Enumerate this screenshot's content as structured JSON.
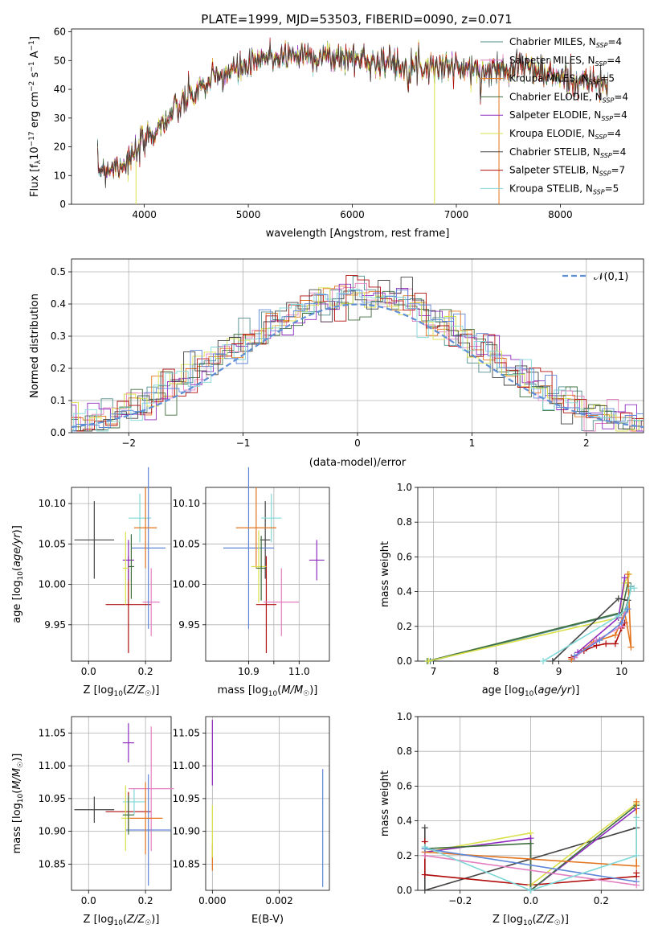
{
  "figure": {
    "title": "PLATE=1999, MJD=53503, FIBERID=0090, z=0.071"
  },
  "colors": {
    "Chabrier MILES": "#4e8d8b",
    "Salpeter MILES": "#e37fc1",
    "Kroupa MILES": "#e3741d",
    "Chabrier ELODIE": "#3f6e3f",
    "Salpeter ELODIE": "#8e2bbf",
    "Kroupa ELODIE": "#d9e04a",
    "Chabrier STELIB": "#444444",
    "Salpeter STELIB": "#b10d0d",
    "Kroupa STELIB": "#7fd7d7",
    "extra_blue": "#5f86d8",
    "normal_curve": "#5f8fd4"
  },
  "chart_data": [
    {
      "id": "spectrum",
      "type": "line",
      "title": "PLATE=1999, MJD=53503, FIBERID=0090, z=0.071",
      "xlabel": "wavelength [Angstrom, rest frame]",
      "ylabel": "Flux [f_λ 10^-17 erg cm^-2 s^-1 A^-1]",
      "xlim": [
        3300,
        8800
      ],
      "ylim": [
        0,
        61
      ],
      "xticks": [
        4000,
        5000,
        6000,
        7000,
        8000
      ],
      "yticks": [
        0,
        10,
        20,
        30,
        40,
        50,
        60
      ],
      "grid": false,
      "legend_position": "top-right",
      "continuum": [
        [
          3550,
          12
        ],
        [
          3700,
          13
        ],
        [
          3850,
          15
        ],
        [
          3950,
          19
        ],
        [
          4050,
          24
        ],
        [
          4200,
          29
        ],
        [
          4400,
          36
        ],
        [
          4600,
          42
        ],
        [
          4800,
          46
        ],
        [
          5000,
          48
        ],
        [
          5200,
          51
        ],
        [
          5400,
          52
        ],
        [
          5600,
          52
        ],
        [
          5800,
          51
        ],
        [
          6000,
          51
        ],
        [
          6200,
          50
        ],
        [
          6400,
          49
        ],
        [
          6600,
          48
        ],
        [
          6800,
          48
        ],
        [
          7000,
          48
        ],
        [
          7200,
          46
        ],
        [
          7400,
          47
        ],
        [
          7600,
          49
        ],
        [
          7800,
          46
        ],
        [
          8000,
          44
        ],
        [
          8200,
          43
        ],
        [
          8400,
          42
        ],
        [
          8460,
          40
        ]
      ],
      "series": [
        {
          "name": "Chabrier MILES, N_SSP=4",
          "label": "Chabrier MILES",
          "sub": "SSP",
          "n": "4"
        },
        {
          "name": "Salpeter MILES, N_SSP=4",
          "label": "Salpeter MILES",
          "sub": "SSP",
          "n": "4"
        },
        {
          "name": "Kroupa MILES, N_SSP=5",
          "label": "Kroupa MILES",
          "sub": "SSP",
          "n": "5"
        },
        {
          "name": "Chabrier ELODIE, N_SSP=4",
          "label": "Chabrier ELODIE",
          "sub": "SSP",
          "n": "4"
        },
        {
          "name": "Salpeter ELODIE, N_SSP=4",
          "label": "Salpeter ELODIE",
          "sub": "SSP",
          "n": "4"
        },
        {
          "name": "Kroupa ELODIE, N_SSP=4",
          "label": "Kroupa ELODIE",
          "sub": "SSP",
          "n": "4"
        },
        {
          "name": "Chabrier STELIB, N_SSP=4",
          "label": "Chabrier STELIB",
          "sub": "SSP",
          "n": "4"
        },
        {
          "name": "Salpeter STELIB, N_SSP=7",
          "label": "Salpeter STELIB",
          "sub": "SSP",
          "n": "7"
        },
        {
          "name": "Kroupa STELIB, N_SSP=5",
          "label": "Kroupa STELIB",
          "sub": "SSP",
          "n": "5"
        }
      ],
      "dropouts": [
        {
          "series": "Kroupa ELODIE",
          "x": 3920,
          "y_from": 15,
          "y_to": 0
        },
        {
          "series": "Kroupa ELODIE",
          "x": 6790,
          "y_from": 48,
          "y_to": 0
        },
        {
          "series": "Kroupa MILES",
          "x": 7410,
          "y_from": 47,
          "y_to": 0
        }
      ]
    },
    {
      "id": "residuals",
      "type": "line",
      "xlabel": "(data-model)/error",
      "ylabel": "Normed distribution",
      "xlim": [
        -2.5,
        2.5
      ],
      "ylim": [
        0,
        0.54
      ],
      "xticks": [
        -2,
        -1,
        0,
        1,
        2
      ],
      "yticks": [
        0.0,
        0.1,
        0.2,
        0.3,
        0.4,
        0.5
      ],
      "grid": true,
      "legend_position": "top-right",
      "normal_label": "𝒩(0,1)",
      "bin_width": 0.1
    },
    {
      "id": "age_vs_Z",
      "type": "scatter",
      "xlabel": "Z [log10(Z/Z☉)]",
      "ylabel": "age [log10(age/yr)]",
      "xlim": [
        -0.06,
        0.29
      ],
      "ylim": [
        9.905,
        10.12
      ],
      "xticks": [
        0.0,
        0.2
      ],
      "yticks": [
        9.95,
        10.0,
        10.05,
        10.1
      ],
      "grid": true,
      "points": [
        {
          "series": "Chabrier STELIB",
          "x": 0.02,
          "xerr": 0.07,
          "y": 10.055,
          "yerr": 0.048
        },
        {
          "series": "Salpeter STELIB",
          "x": 0.14,
          "xerr": 0.08,
          "y": 9.975,
          "yerr": 0.06
        },
        {
          "series": "Kroupa STELIB",
          "x": 0.18,
          "xerr": 0.04,
          "y": 10.082,
          "yerr": 0.03
        },
        {
          "series": "Salpeter MILES",
          "x": 0.22,
          "xerr": 0.03,
          "y": 9.978,
          "yerr": 0.042
        },
        {
          "series": "extra_blue",
          "x": 0.21,
          "xerr": 0.06,
          "y": 10.045,
          "yerr": 0.1
        },
        {
          "series": "Kroupa MILES",
          "x": 0.2,
          "xerr": 0.04,
          "y": 10.07,
          "yerr": 0.05
        },
        {
          "series": "Salpeter ELODIE",
          "x": 0.14,
          "xerr": 0.02,
          "y": 10.03,
          "yerr": 0.025
        },
        {
          "series": "Kroupa ELODIE",
          "x": 0.13,
          "xerr": 0.01,
          "y": 10.02,
          "yerr": 0.045
        },
        {
          "series": "Chabrier ELODIE",
          "x": 0.15,
          "xerr": 0.01,
          "y": 10.022,
          "yerr": 0.04
        }
      ]
    },
    {
      "id": "age_vs_mass",
      "type": "scatter",
      "xlabel": "mass [log10(M/M☉)]",
      "ylabel": "",
      "xlim": [
        10.815,
        11.06
      ],
      "ylim": [
        9.905,
        10.12
      ],
      "xticks": [
        10.9,
        10.95,
        11.0
      ],
      "xticklabels": [
        "10.9",
        "",
        "11.0"
      ],
      "yticks": [
        9.95,
        10.0,
        10.05,
        10.1
      ],
      "grid": true,
      "points": [
        {
          "series": "Chabrier STELIB",
          "x": 10.933,
          "xerr": 0.01,
          "y": 10.055,
          "yerr": 0.048
        },
        {
          "series": "Salpeter STELIB",
          "x": 10.935,
          "xerr": 0.02,
          "y": 9.975,
          "yerr": 0.06
        },
        {
          "series": "Kroupa STELIB",
          "x": 10.945,
          "xerr": 0.02,
          "y": 10.082,
          "yerr": 0.03
        },
        {
          "series": "Salpeter MILES",
          "x": 10.965,
          "xerr": 0.035,
          "y": 9.978,
          "yerr": 0.042
        },
        {
          "series": "extra_blue",
          "x": 10.9,
          "xerr": 0.05,
          "y": 10.045,
          "yerr": 0.1
        },
        {
          "series": "Kroupa MILES",
          "x": 10.915,
          "xerr": 0.04,
          "y": 10.07,
          "yerr": 0.05
        },
        {
          "series": "Salpeter ELODIE",
          "x": 11.035,
          "xerr": 0.015,
          "y": 10.03,
          "yerr": 0.025
        },
        {
          "series": "Kroupa ELODIE",
          "x": 10.92,
          "xerr": 0.015,
          "y": 10.022,
          "yerr": 0.045
        },
        {
          "series": "Chabrier ELODIE",
          "x": 10.925,
          "xerr": 0.01,
          "y": 10.02,
          "yerr": 0.04
        }
      ]
    },
    {
      "id": "weights_vs_age",
      "type": "line",
      "xlabel": "age [log10(age/yr)]",
      "ylabel": "mass weight",
      "xlim": [
        6.75,
        10.35
      ],
      "ylim": [
        0,
        1.0
      ],
      "xticks": [
        7,
        8,
        9,
        10
      ],
      "yticks": [
        0.0,
        0.2,
        0.4,
        0.6,
        0.8,
        1.0
      ],
      "grid": true,
      "series": [
        {
          "series": "Chabrier MILES",
          "points": [
            [
              6.95,
              0.0
            ],
            [
              10.05,
              0.28
            ],
            [
              10.1,
              0.35
            ],
            [
              10.15,
              0.43
            ]
          ]
        },
        {
          "series": "Chabrier ELODIE",
          "points": [
            [
              6.9,
              0.0
            ],
            [
              10.0,
              0.28
            ],
            [
              10.1,
              0.45
            ]
          ]
        },
        {
          "series": "Kroupa ELODIE",
          "points": [
            [
              6.92,
              0.0
            ],
            [
              9.95,
              0.25
            ],
            [
              10.05,
              0.45
            ],
            [
              10.12,
              0.5
            ]
          ]
        },
        {
          "series": "Salpeter ELODIE",
          "points": [
            [
              9.3,
              0.05
            ],
            [
              9.95,
              0.25
            ],
            [
              10.05,
              0.48
            ]
          ]
        },
        {
          "series": "Chabrier STELIB",
          "points": [
            [
              8.9,
              0.0
            ],
            [
              9.95,
              0.36
            ],
            [
              10.1,
              0.35
            ]
          ]
        },
        {
          "series": "Salpeter STELIB",
          "points": [
            [
              9.2,
              0.02
            ],
            [
              9.4,
              0.06
            ],
            [
              9.6,
              0.09
            ],
            [
              9.75,
              0.1
            ],
            [
              9.9,
              0.1
            ],
            [
              10.0,
              0.19
            ],
            [
              10.05,
              0.22
            ]
          ]
        },
        {
          "series": "Kroupa MILES",
          "points": [
            [
              9.2,
              0.01
            ],
            [
              9.55,
              0.11
            ],
            [
              9.9,
              0.15
            ],
            [
              10.05,
              0.28
            ],
            [
              10.15,
              0.08
            ],
            [
              10.1,
              0.5
            ]
          ]
        },
        {
          "series": "Salpeter MILES",
          "points": [
            [
              9.25,
              0.02
            ],
            [
              9.6,
              0.12
            ],
            [
              10.0,
              0.2
            ],
            [
              10.05,
              0.28
            ]
          ]
        },
        {
          "series": "Kroupa STELIB",
          "points": [
            [
              8.75,
              0.0
            ],
            [
              9.95,
              0.26
            ],
            [
              10.08,
              0.3
            ],
            [
              10.15,
              0.42
            ],
            [
              10.2,
              0.42
            ]
          ]
        },
        {
          "series": "extra_blue",
          "points": [
            [
              9.25,
              0.03
            ],
            [
              9.65,
              0.12
            ],
            [
              10.0,
              0.22
            ],
            [
              10.1,
              0.3
            ]
          ]
        }
      ]
    },
    {
      "id": "mass_vs_Z",
      "type": "scatter",
      "xlabel": "Z [log10(Z/Z☉)]",
      "ylabel": "mass [log10(M/M☉)]",
      "xlim": [
        -0.06,
        0.29
      ],
      "ylim": [
        10.81,
        11.075
      ],
      "xticks": [
        0.0,
        0.2
      ],
      "yticks": [
        10.85,
        10.9,
        10.95,
        11.0,
        11.05
      ],
      "grid": true,
      "points": [
        {
          "series": "Chabrier STELIB",
          "x": 0.02,
          "xerr": 0.07,
          "y": 10.933,
          "yerr": 0.02
        },
        {
          "series": "Salpeter STELIB",
          "x": 0.14,
          "xerr": 0.08,
          "y": 10.93,
          "yerr": 0.03
        },
        {
          "series": "Kroupa STELIB",
          "x": 0.16,
          "xerr": 0.04,
          "y": 10.945,
          "yerr": 0.02
        },
        {
          "series": "Salpeter MILES",
          "x": 0.22,
          "xerr": 0.08,
          "y": 10.965,
          "yerr": 0.095
        },
        {
          "series": "extra_blue",
          "x": 0.21,
          "xerr": 0.08,
          "y": 10.902,
          "yerr": 0.085
        },
        {
          "series": "Kroupa MILES",
          "x": 0.2,
          "xerr": 0.06,
          "y": 10.92,
          "yerr": 0.055
        },
        {
          "series": "Salpeter ELODIE",
          "x": 0.14,
          "xerr": 0.02,
          "y": 11.035,
          "yerr": 0.03
        },
        {
          "series": "Kroupa ELODIE",
          "x": 0.13,
          "xerr": 0.015,
          "y": 10.92,
          "yerr": 0.05
        },
        {
          "series": "Chabrier ELODIE",
          "x": 0.14,
          "xerr": 0.02,
          "y": 10.925,
          "yerr": 0.03
        }
      ]
    },
    {
      "id": "mass_vs_EBV",
      "type": "scatter",
      "xlabel": "E(B-V)",
      "ylabel": "",
      "xlim": [
        -0.0002,
        0.0035
      ],
      "ylim": [
        10.81,
        11.075
      ],
      "xticks": [
        0.0,
        0.002
      ],
      "xticklabels": [
        "0.000",
        "0.002"
      ],
      "yticks": [
        10.85,
        10.9,
        10.95,
        11.0,
        11.05
      ],
      "grid": true,
      "points": [
        {
          "series": "Salpeter ELODIE",
          "x": 0.0,
          "y": 11.02,
          "yerr": 0.05
        },
        {
          "series": "Kroupa MILES",
          "x": 0.0,
          "y": 10.86,
          "yerr": 0.02
        },
        {
          "series": "Kroupa ELODIE",
          "x": 0.0,
          "y": 10.9,
          "yerr": 0.04
        },
        {
          "series": "extra_blue",
          "x": 0.0033,
          "y": 10.905,
          "yerr": 0.09
        }
      ]
    },
    {
      "id": "weights_vs_Z",
      "type": "line",
      "xlabel": "Z [log10(Z/Z☉)]",
      "ylabel": "mass weight",
      "xlim": [
        -0.32,
        0.32
      ],
      "ylim": [
        0,
        1.0
      ],
      "xticks": [
        -0.2,
        0.0,
        0.2
      ],
      "yticks": [
        0.0,
        0.2,
        0.4,
        0.6,
        0.8,
        1.0
      ],
      "grid": true,
      "series": [
        {
          "series": "Chabrier STELIB",
          "points": [
            [
              -0.3,
              0.36
            ],
            [
              -0.3,
              0.0
            ],
            [
              0.3,
              0.36
            ]
          ]
        },
        {
          "series": "Salpeter STELIB",
          "points": [
            [
              -0.3,
              0.28
            ],
            [
              -0.3,
              0.09
            ],
            [
              0.0,
              0.03
            ],
            [
              0.3,
              0.08
            ],
            [
              0.3,
              0.1
            ]
          ]
        },
        {
          "series": "Kroupa ELODIE",
          "points": [
            [
              -0.3,
              0.22
            ],
            [
              0.0,
              0.33
            ],
            [
              0.0,
              0.03
            ],
            [
              0.3,
              0.5
            ]
          ]
        },
        {
          "series": "Salpeter ELODIE",
          "points": [
            [
              -0.3,
              0.22
            ],
            [
              0.0,
              0.3
            ],
            [
              0.0,
              0.0
            ],
            [
              0.3,
              0.47
            ]
          ]
        },
        {
          "series": "Chabrier ELODIE",
          "points": [
            [
              -0.3,
              0.24
            ],
            [
              0.0,
              0.27
            ],
            [
              0.0,
              0.0
            ],
            [
              0.3,
              0.49
            ]
          ]
        },
        {
          "series": "Kroupa MILES",
          "points": [
            [
              -0.3,
              0.22
            ],
            [
              0.3,
              0.14
            ],
            [
              0.3,
              0.51
            ]
          ]
        },
        {
          "series": "extra_blue",
          "points": [
            [
              -0.3,
              0.24
            ],
            [
              0.3,
              0.05
            ]
          ]
        },
        {
          "series": "Salpeter MILES",
          "points": [
            [
              -0.3,
              0.2
            ],
            [
              0.3,
              0.03
            ]
          ]
        },
        {
          "series": "Kroupa STELIB",
          "points": [
            [
              -0.3,
              0.25
            ],
            [
              0.0,
              0.0
            ],
            [
              0.3,
              0.2
            ],
            [
              0.3,
              0.42
            ]
          ]
        }
      ]
    }
  ]
}
